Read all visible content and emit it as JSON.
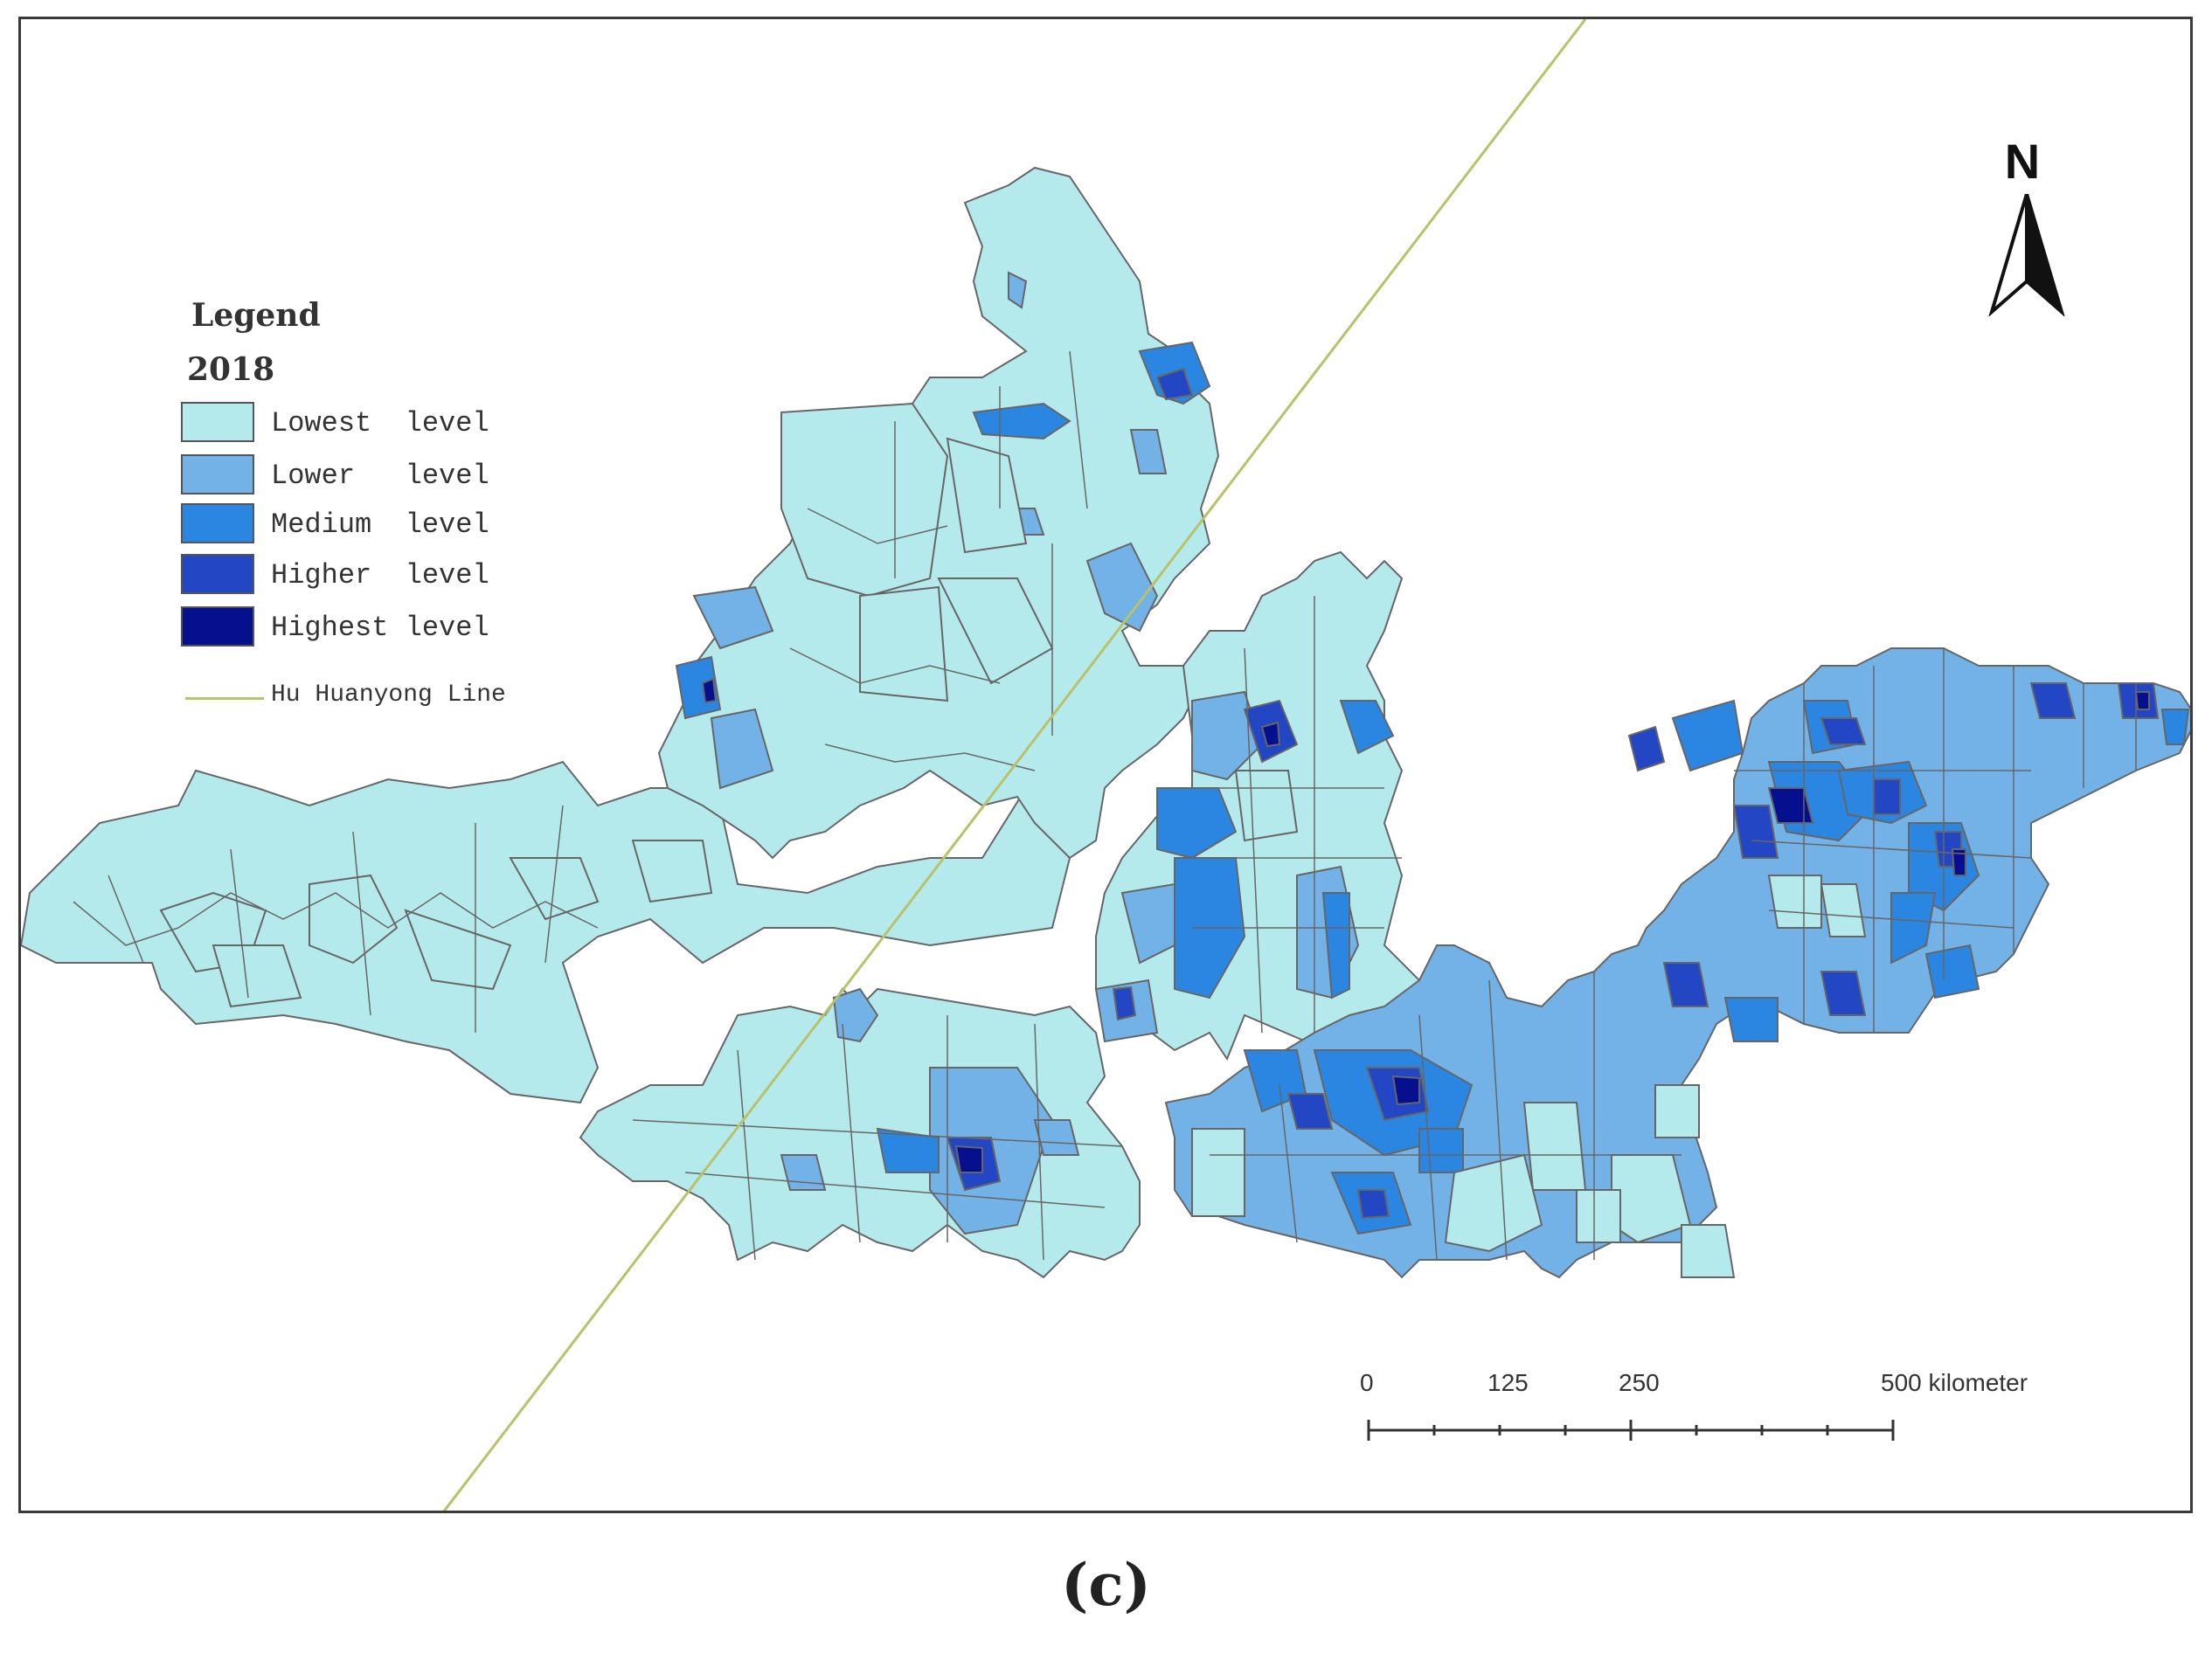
{
  "legend": {
    "title": "Legend",
    "year": "2018",
    "items": [
      {
        "label": "Lowest  level",
        "color": "#b5eaed"
      },
      {
        "label": "Lower   level",
        "color": "#73b2e6"
      },
      {
        "label": "Medium  level",
        "color": "#2a86e0"
      },
      {
        "label": "Higher  level",
        "color": "#2246c4"
      },
      {
        "label": "Highest level",
        "color": "#06108f"
      }
    ],
    "line_label": "Hu Huanyong Line",
    "line_color": "#b8c26b"
  },
  "north_arrow": {
    "letter": "N"
  },
  "scale_bar": {
    "labels": [
      "0",
      "125",
      "250",
      "500 kilometer"
    ],
    "unit": "kilometer"
  },
  "caption": "(c)",
  "colors": {
    "boundary": "#666666",
    "frame": "#3a3a3a"
  }
}
